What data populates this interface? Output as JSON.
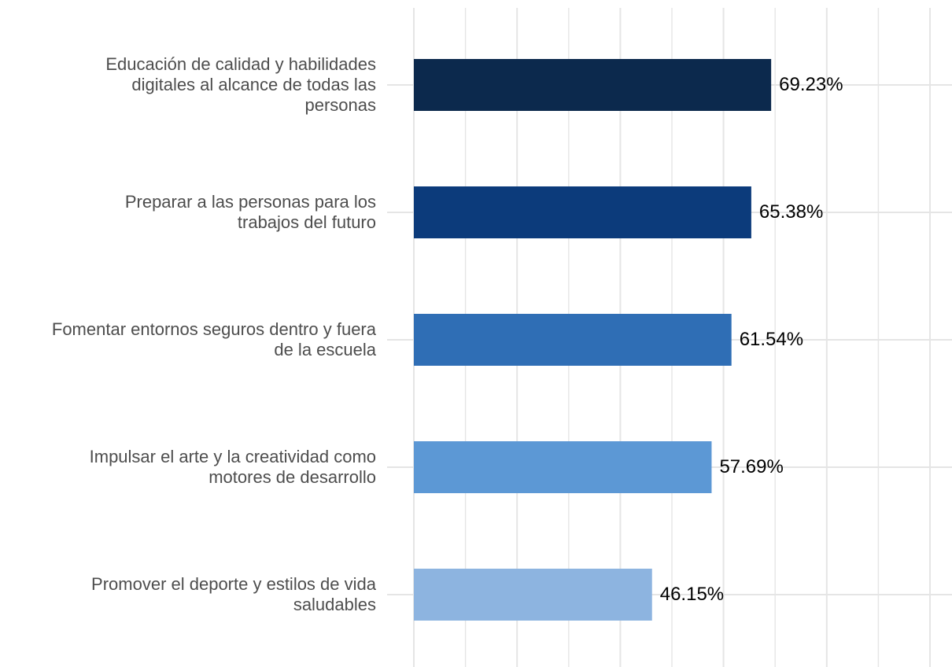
{
  "chart_data": {
    "type": "bar",
    "orientation": "horizontal",
    "title": "",
    "xlabel": "",
    "ylabel": "",
    "xlim": [
      0,
      100
    ],
    "grid": true,
    "legend": "none",
    "categories": [
      "Educación de calidad y habilidades digitales al alcance de todas las personas",
      "Preparar a las personas para los trabajos del futuro",
      "Fomentar entornos seguros dentro y fuera de la escuela",
      "Impulsar el arte y la creatividad como motores de desarrollo",
      "Promover el deporte y estilos de vida saludables"
    ],
    "category_lines": [
      [
        "Educación de calidad y habilidades",
        "digitales al alcance de todas las",
        "personas"
      ],
      [
        "Preparar a las personas para los",
        "trabajos del futuro"
      ],
      [
        "Fomentar entornos seguros dentro y fuera",
        "de la escuela"
      ],
      [
        "Impulsar el arte y la creatividad como",
        "motores de desarrollo"
      ],
      [
        "Promover el deporte y estilos de vida",
        "saludables"
      ]
    ],
    "values": [
      69.23,
      65.38,
      61.54,
      57.69,
      46.15
    ],
    "value_labels": [
      "69.23%",
      "65.38%",
      "61.54%",
      "57.69%",
      "46.15%"
    ],
    "colors": [
      "#0c294d",
      "#0c3b7b",
      "#2f6eb5",
      "#5c98d5",
      "#8db4e0"
    ]
  },
  "style": {
    "grid_color": "#e5e5e5",
    "label_color": "#4d4d4d",
    "value_color": "#000000"
  }
}
